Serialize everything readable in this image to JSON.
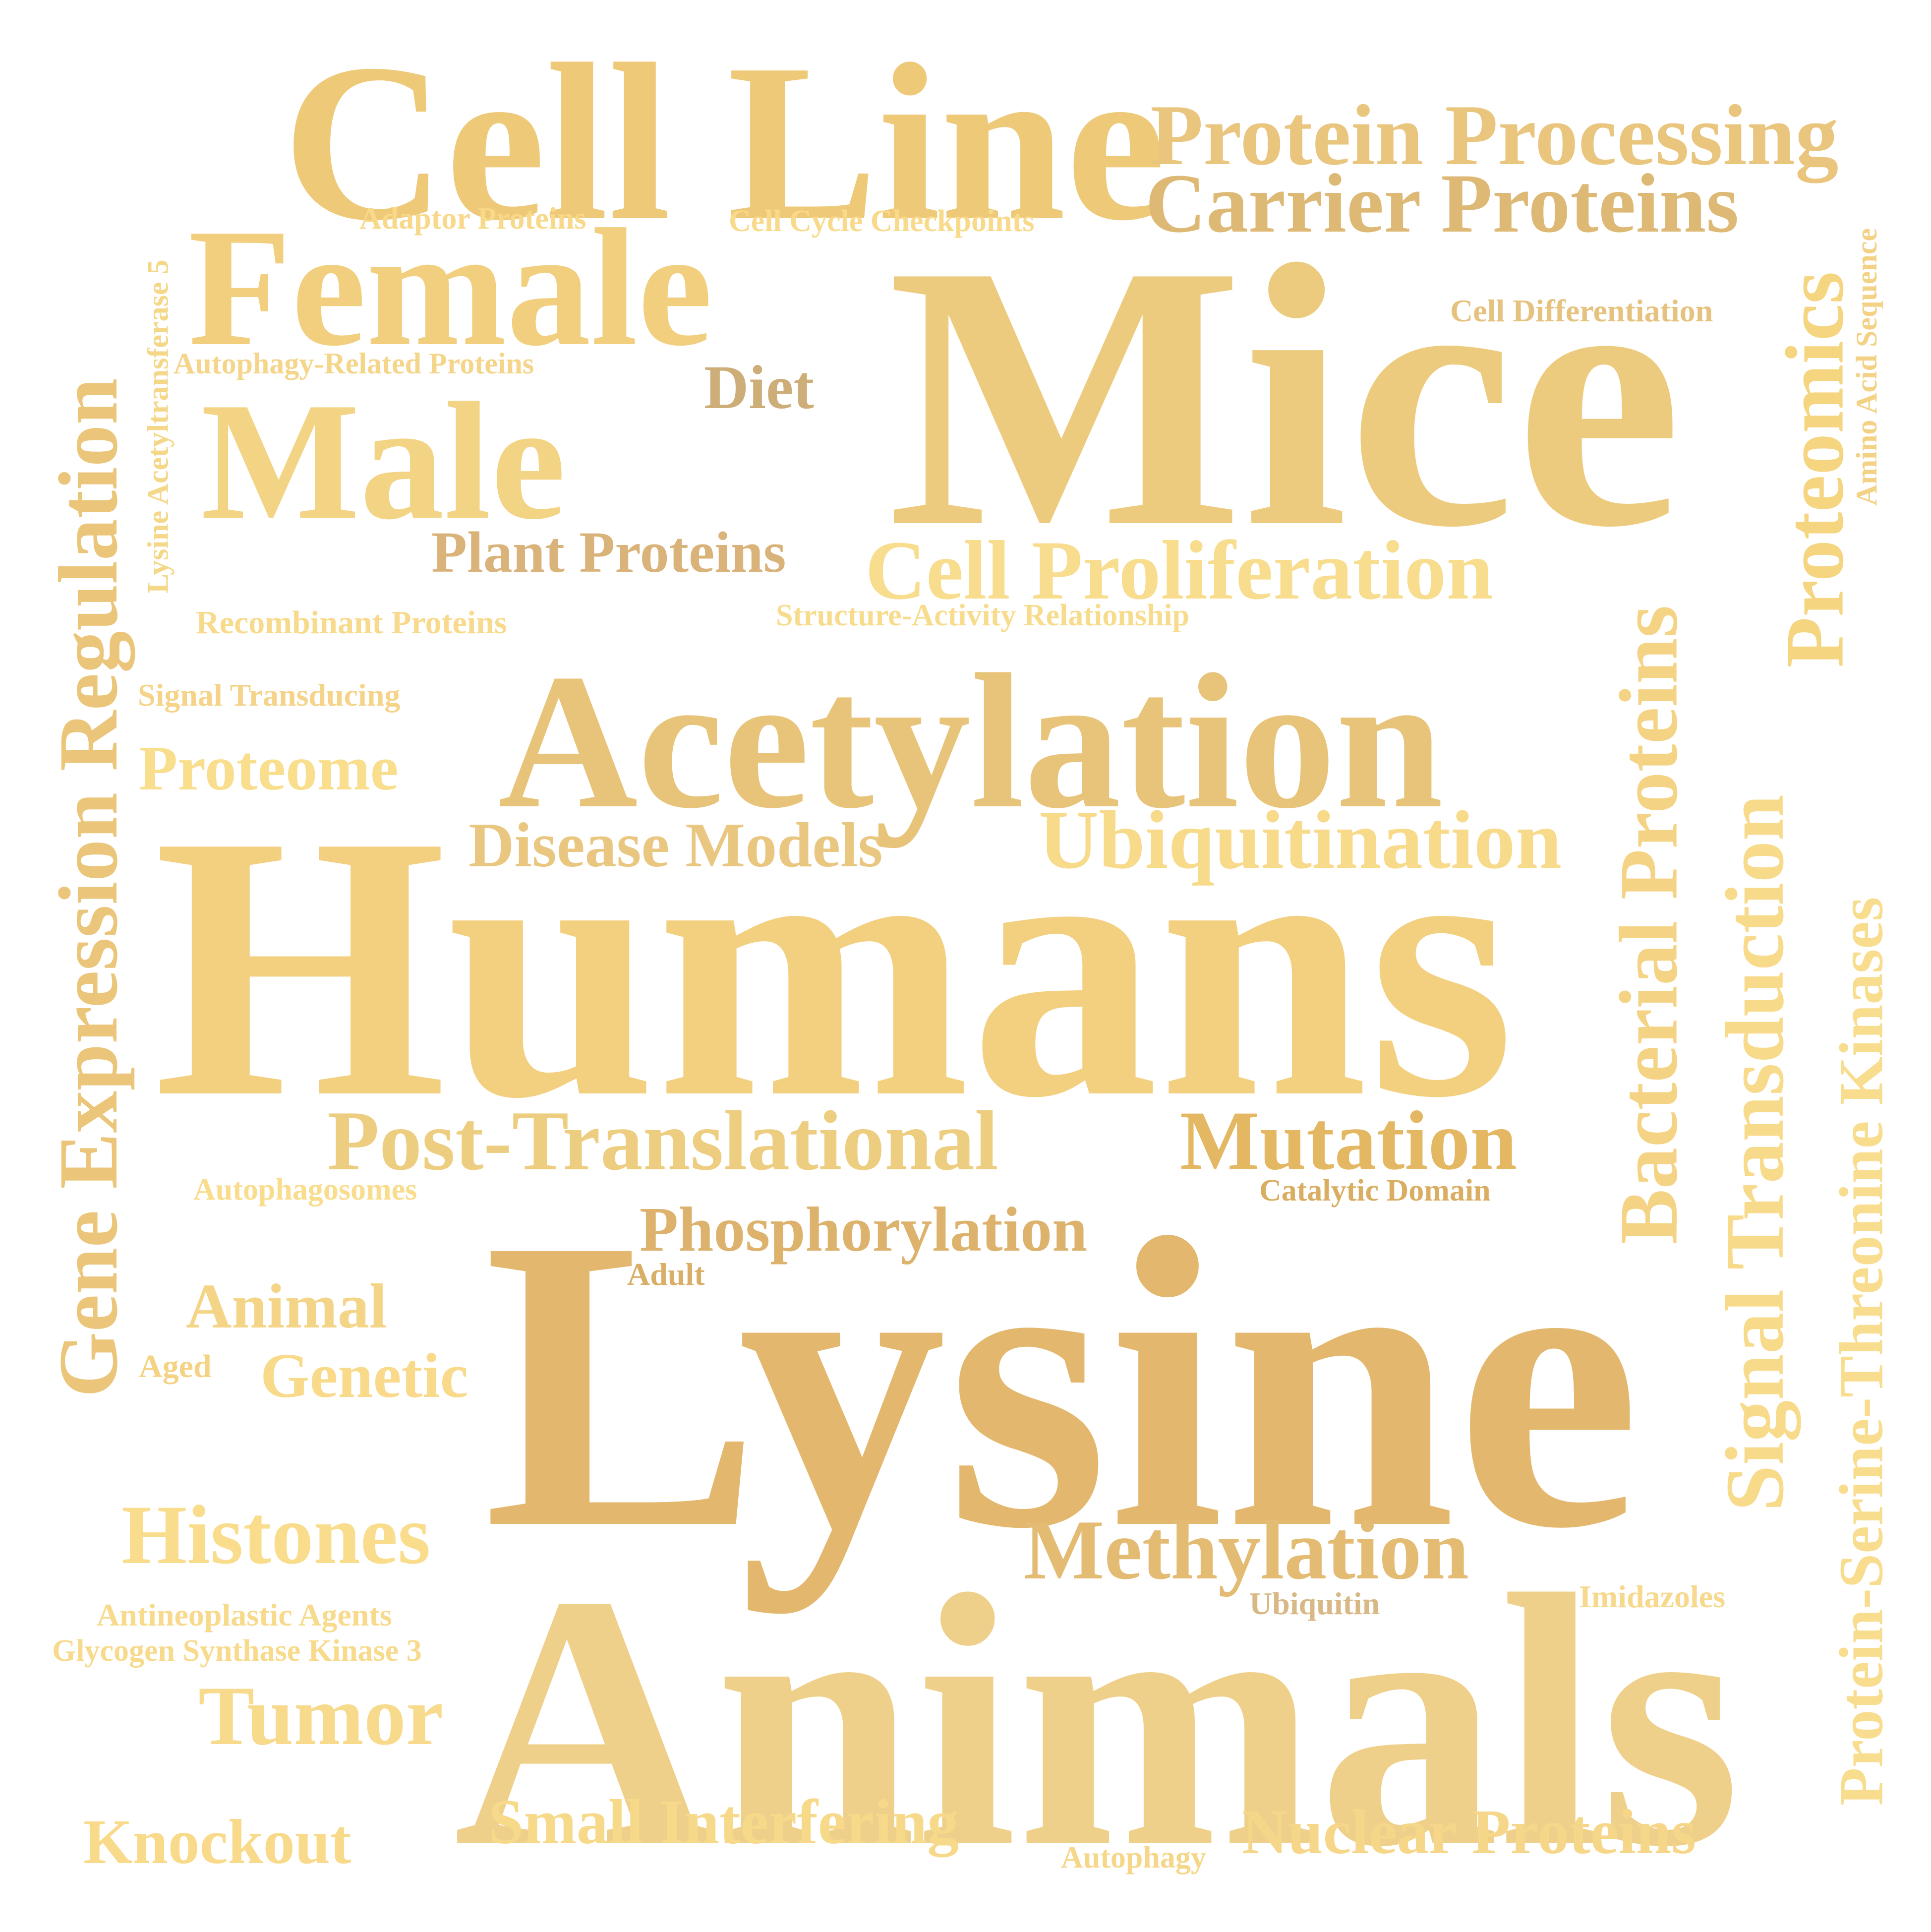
{
  "words": {
    "w1": {
      "text": "Cell Line",
      "color": "#EDC978"
    },
    "w2": {
      "text": "Protein Processing",
      "color": "#E9C57E"
    },
    "w3": {
      "text": "Carrier Proteins",
      "color": "#DDB975"
    },
    "w4": {
      "text": "Adaptor Proteins",
      "color": "#F8D889"
    },
    "w5": {
      "text": "Cell Cycle Checkpoints",
      "color": "#F8DA8A"
    },
    "w6": {
      "text": "Female",
      "color": "#F2CF7E"
    },
    "w7": {
      "text": "Mice",
      "color": "#EDCB7E"
    },
    "w8": {
      "text": "Cell Differentiation",
      "color": "#E6C27F"
    },
    "w9": {
      "text": "Lysine Acetyltransferase 5",
      "color": "#F5D788"
    },
    "w10": {
      "text": "Autophagy-Related Proteins",
      "color": "#F4D589"
    },
    "w11": {
      "text": "Diet",
      "color": "#CDAD78"
    },
    "w12": {
      "text": "Male",
      "color": "#F3D384"
    },
    "w13": {
      "text": "Gene Expression Regulation",
      "color": "#EBC67A"
    },
    "w14": {
      "text": "Proteomics",
      "color": "#F5D57F"
    },
    "w15": {
      "text": "Amino Acid Sequence",
      "color": "#F3D286"
    },
    "w16": {
      "text": "Plant Proteins",
      "color": "#D9B37A"
    },
    "w17": {
      "text": "Cell Proliferation",
      "color": "#F8DD8E"
    },
    "w18": {
      "text": "Structure-Activity Relationship",
      "color": "#F8DC8E"
    },
    "w19": {
      "text": "Recombinant Proteins",
      "color": "#F8DA8C"
    },
    "w20": {
      "text": "Signal Transducing",
      "color": "#F5D48A"
    },
    "w21": {
      "text": "Acetylation",
      "color": "#E8C47A"
    },
    "w22": {
      "text": "Proteome",
      "color": "#F9DE8D"
    },
    "w23": {
      "text": "Bacterial Proteins",
      "color": "#F5D384"
    },
    "w24": {
      "text": "Signal Transduction",
      "color": "#F8DA8B"
    },
    "w25": {
      "text": "Protein-Serine-Threonine Kinases",
      "color": "#F9DD8E"
    },
    "w26": {
      "text": "Disease Models",
      "color": "#EAC780"
    },
    "w27": {
      "text": "Ubiquitination",
      "color": "#F8DA8B"
    },
    "w28": {
      "text": "Humans",
      "color": "#F2D080"
    },
    "w29": {
      "text": "Post-Translational",
      "color": "#EDCD80"
    },
    "w30": {
      "text": "Mutation",
      "color": "#E4B762"
    },
    "w31": {
      "text": "Catalytic Domain",
      "color": "#D9AE62"
    },
    "w32": {
      "text": "Autophagosomes",
      "color": "#F9DC8C"
    },
    "w33": {
      "text": "Phosphorylation",
      "color": "#DDB26D"
    },
    "w34": {
      "text": "Adult",
      "color": "#D9AE66"
    },
    "w35": {
      "text": "Lysine",
      "color": "#E3B86E"
    },
    "w36": {
      "text": "Animal",
      "color": "#F4D486"
    },
    "w37": {
      "text": "Aged",
      "color": "#F4D384"
    },
    "w38": {
      "text": "Genetic",
      "color": "#F8DA8A"
    },
    "w39": {
      "text": "Histones",
      "color": "#F9DC8C"
    },
    "w40": {
      "text": "Methylation",
      "color": "#E3BB73"
    },
    "w41": {
      "text": "Ubiquitin",
      "color": "#D8B885"
    },
    "w42": {
      "text": "Imidazoles",
      "color": "#F6D98C"
    },
    "w43": {
      "text": "Antineoplastic Agents",
      "color": "#F8DA8C"
    },
    "w44": {
      "text": "Glycogen Synthase Kinase 3",
      "color": "#F8DA8C"
    },
    "w45": {
      "text": "Animals",
      "color": "#EFD08A"
    },
    "w46": {
      "text": "Tumor",
      "color": "#F8DA8C"
    },
    "w47": {
      "text": "Knockout",
      "color": "#F8DA8A"
    },
    "w48": {
      "text": "Small Interfering",
      "color": "#F7D98A"
    },
    "w49": {
      "text": "Autophagy",
      "color": "#F6D78A"
    },
    "w50": {
      "text": "Nuclear Proteins",
      "color": "#F6D78A"
    }
  }
}
